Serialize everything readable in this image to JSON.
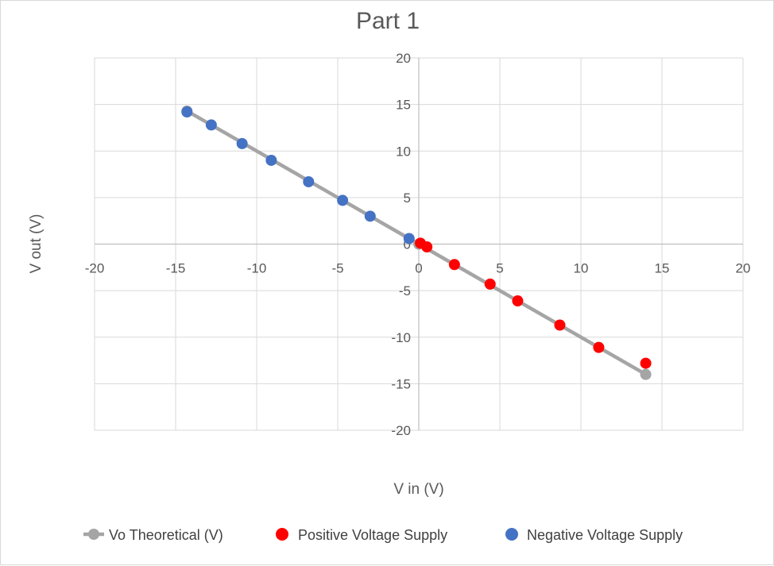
{
  "chart_data": {
    "type": "scatter",
    "title": "Part 1",
    "xlabel": "V in (V)",
    "ylabel": "V out (V)",
    "xlim": [
      -20,
      20
    ],
    "ylim": [
      -20,
      20
    ],
    "x_ticks": [
      -20,
      -15,
      -10,
      -5,
      0,
      5,
      10,
      15,
      20
    ],
    "y_ticks": [
      20,
      15,
      10,
      5,
      0,
      -5,
      -10,
      -15,
      -20
    ],
    "grid": true,
    "legend_position": "bottom",
    "series": [
      {
        "name": "Vo Theoretical (V)",
        "color": "#a5a5a5",
        "style": "line-with-markers",
        "points": [
          [
            -14.3,
            14.3
          ],
          [
            0,
            0
          ],
          [
            14,
            -14
          ]
        ]
      },
      {
        "name": "Positive Voltage Supply",
        "color": "#ff0000",
        "style": "markers",
        "points": [
          [
            0.1,
            0.1
          ],
          [
            0.5,
            -0.3
          ],
          [
            2.2,
            -2.2
          ],
          [
            4.4,
            -4.3
          ],
          [
            6.1,
            -6.1
          ],
          [
            8.7,
            -8.7
          ],
          [
            11.1,
            -11.1
          ],
          [
            14.0,
            -12.8
          ]
        ]
      },
      {
        "name": "Negative Voltage Supply",
        "color": "#4472c4",
        "style": "markers",
        "points": [
          [
            -14.3,
            14.2
          ],
          [
            -12.8,
            12.8
          ],
          [
            -10.9,
            10.8
          ],
          [
            -9.1,
            9.0
          ],
          [
            -6.8,
            6.7
          ],
          [
            -4.7,
            4.7
          ],
          [
            -3.0,
            3.0
          ],
          [
            -0.6,
            0.6
          ]
        ]
      }
    ]
  }
}
